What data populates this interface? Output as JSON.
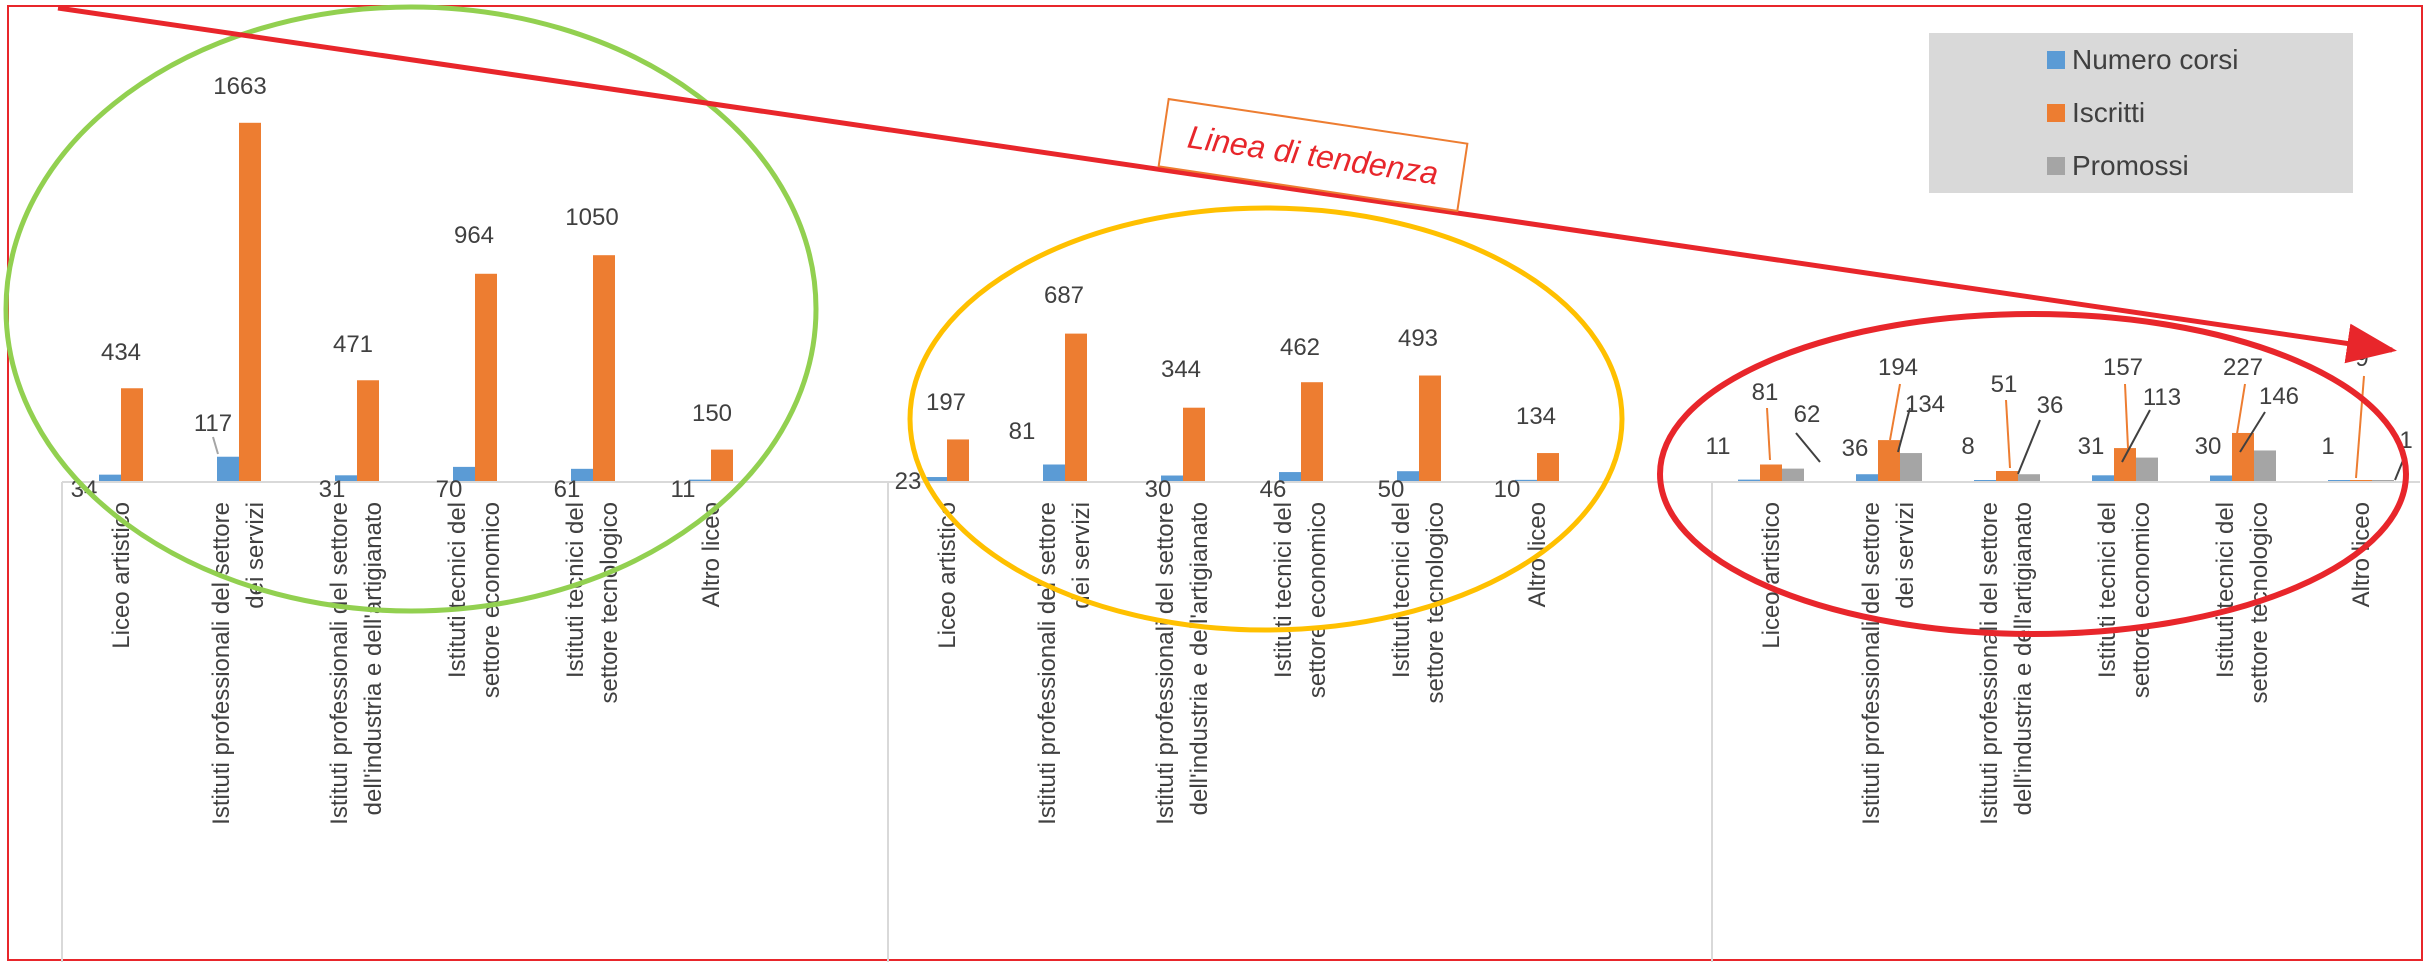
{
  "chart_data": {
    "type": "bar",
    "title": "",
    "xlabel": "",
    "ylabel": "",
    "legend": {
      "placement": "top-right",
      "entries": [
        "Numero corsi",
        "Iscritti",
        "Promossi"
      ]
    },
    "colors": {
      "Numero corsi": "#5B9BD5",
      "Iscritti": "#ED7D31",
      "Promossi": "#A5A5A5",
      "frame": "#E8262B",
      "trend": "#E8262B",
      "ellipse_green": "#92D050",
      "ellipse_yellow": "#FFC000",
      "ellipse_red": "#E8262B",
      "legend_bg": "#D9D9D9"
    },
    "trend_annotation": "Linea di tendenza",
    "groups": [
      {
        "categories": [
          "Liceo artistico",
          "Istituti professionali del settore dei servizi",
          "Istituti professionali del settore dell'industria e dell'artigianato",
          "Istituti tecnici del settore economico",
          "Istituti tecnici del settore tecnologico",
          "Altro liceo"
        ],
        "series": [
          {
            "name": "Numero corsi",
            "values": [
              34,
              117,
              31,
              70,
              61,
              11
            ]
          },
          {
            "name": "Iscritti",
            "values": [
              434,
              1663,
              471,
              964,
              1050,
              150
            ]
          }
        ]
      },
      {
        "categories": [
          "Liceo artistico",
          "Istituti professionali del settore dei servizi",
          "Istituti professionali del settore dell'industria e dell'artigianato",
          "Istituti tecnici del settore economico",
          "Istituti tecnici del settore tecnologico",
          "Altro liceo"
        ],
        "series": [
          {
            "name": "Numero corsi",
            "values": [
              23,
              81,
              30,
              46,
              50,
              10
            ]
          },
          {
            "name": "Iscritti",
            "values": [
              197,
              687,
              344,
              462,
              493,
              134
            ]
          }
        ]
      },
      {
        "categories": [
          "Liceo artistico",
          "Istituti professionali del settore dei servizi",
          "Istituti professionali del settore dell'industria e dell'artigianato",
          "Istituti tecnici del settore economico",
          "Istituti tecnici del settore tecnologico",
          "Altro liceo"
        ],
        "series": [
          {
            "name": "Numero corsi",
            "values": [
              11,
              36,
              8,
              31,
              30,
              1
            ]
          },
          {
            "name": "Iscritti",
            "values": [
              81,
              194,
              51,
              157,
              227,
              9
            ]
          },
          {
            "name": "Promossi",
            "values": [
              62,
              134,
              36,
              113,
              146,
              1
            ]
          }
        ]
      }
    ]
  }
}
